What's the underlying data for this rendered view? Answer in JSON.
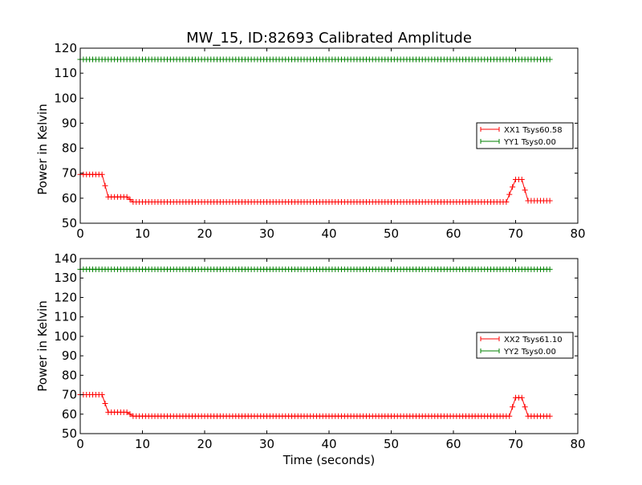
{
  "chart_data": [
    {
      "type": "line",
      "title": "MW_15, ID:82693 Calibrated Amplitude",
      "xlabel": "",
      "ylabel": "Power in Kelvin",
      "xlim": [
        0,
        80
      ],
      "ylim": [
        50,
        120
      ],
      "xticks": [
        0,
        10,
        20,
        30,
        40,
        50,
        60,
        70,
        80
      ],
      "yticks": [
        50,
        60,
        70,
        80,
        90,
        100,
        110,
        120
      ],
      "grid": false,
      "legend_position": "right",
      "marker": "+",
      "series": [
        {
          "name": "XX1 Tsys60.58",
          "color": "#ff0000",
          "step": 0.5,
          "x_range": [
            0,
            75.5
          ],
          "segments": [
            {
              "from": 0,
              "to": 3.5,
              "level": 69.5
            },
            {
              "from": 4.5,
              "to": 7.5,
              "level": 60.5
            },
            {
              "from": 8.5,
              "to": 68.5,
              "level": 58.5
            },
            {
              "from": 70,
              "to": 71,
              "level": 67.5
            },
            {
              "from": 72,
              "to": 75.5,
              "level": 59
            }
          ]
        },
        {
          "name": "YY1 Tsys0.00",
          "color": "#008000",
          "step": 0.5,
          "x_range": [
            0,
            75.5
          ],
          "segments": [
            {
              "from": 0,
              "to": 75.5,
              "level": 115.5
            }
          ]
        }
      ]
    },
    {
      "type": "line",
      "title": "",
      "xlabel": "Time (seconds)",
      "ylabel": "Power in Kelvin",
      "xlim": [
        0,
        80
      ],
      "ylim": [
        50,
        140
      ],
      "xticks": [
        0,
        10,
        20,
        30,
        40,
        50,
        60,
        70,
        80
      ],
      "yticks": [
        50,
        60,
        70,
        80,
        90,
        100,
        110,
        120,
        130,
        140
      ],
      "grid": false,
      "legend_position": "right",
      "marker": "+",
      "series": [
        {
          "name": "XX2 Tsys61.10",
          "color": "#ff0000",
          "step": 0.5,
          "x_range": [
            0,
            75.5
          ],
          "segments": [
            {
              "from": 0,
              "to": 3.5,
              "level": 70
            },
            {
              "from": 4.5,
              "to": 7.5,
              "level": 61
            },
            {
              "from": 8.5,
              "to": 69,
              "level": 59
            },
            {
              "from": 70,
              "to": 71,
              "level": 68.5
            },
            {
              "from": 72,
              "to": 75.5,
              "level": 59
            }
          ]
        },
        {
          "name": "YY2 Tsys0.00",
          "color": "#008000",
          "step": 0.5,
          "x_range": [
            0,
            75.5
          ],
          "segments": [
            {
              "from": 0,
              "to": 75.5,
              "level": 134.5
            }
          ]
        }
      ]
    }
  ]
}
